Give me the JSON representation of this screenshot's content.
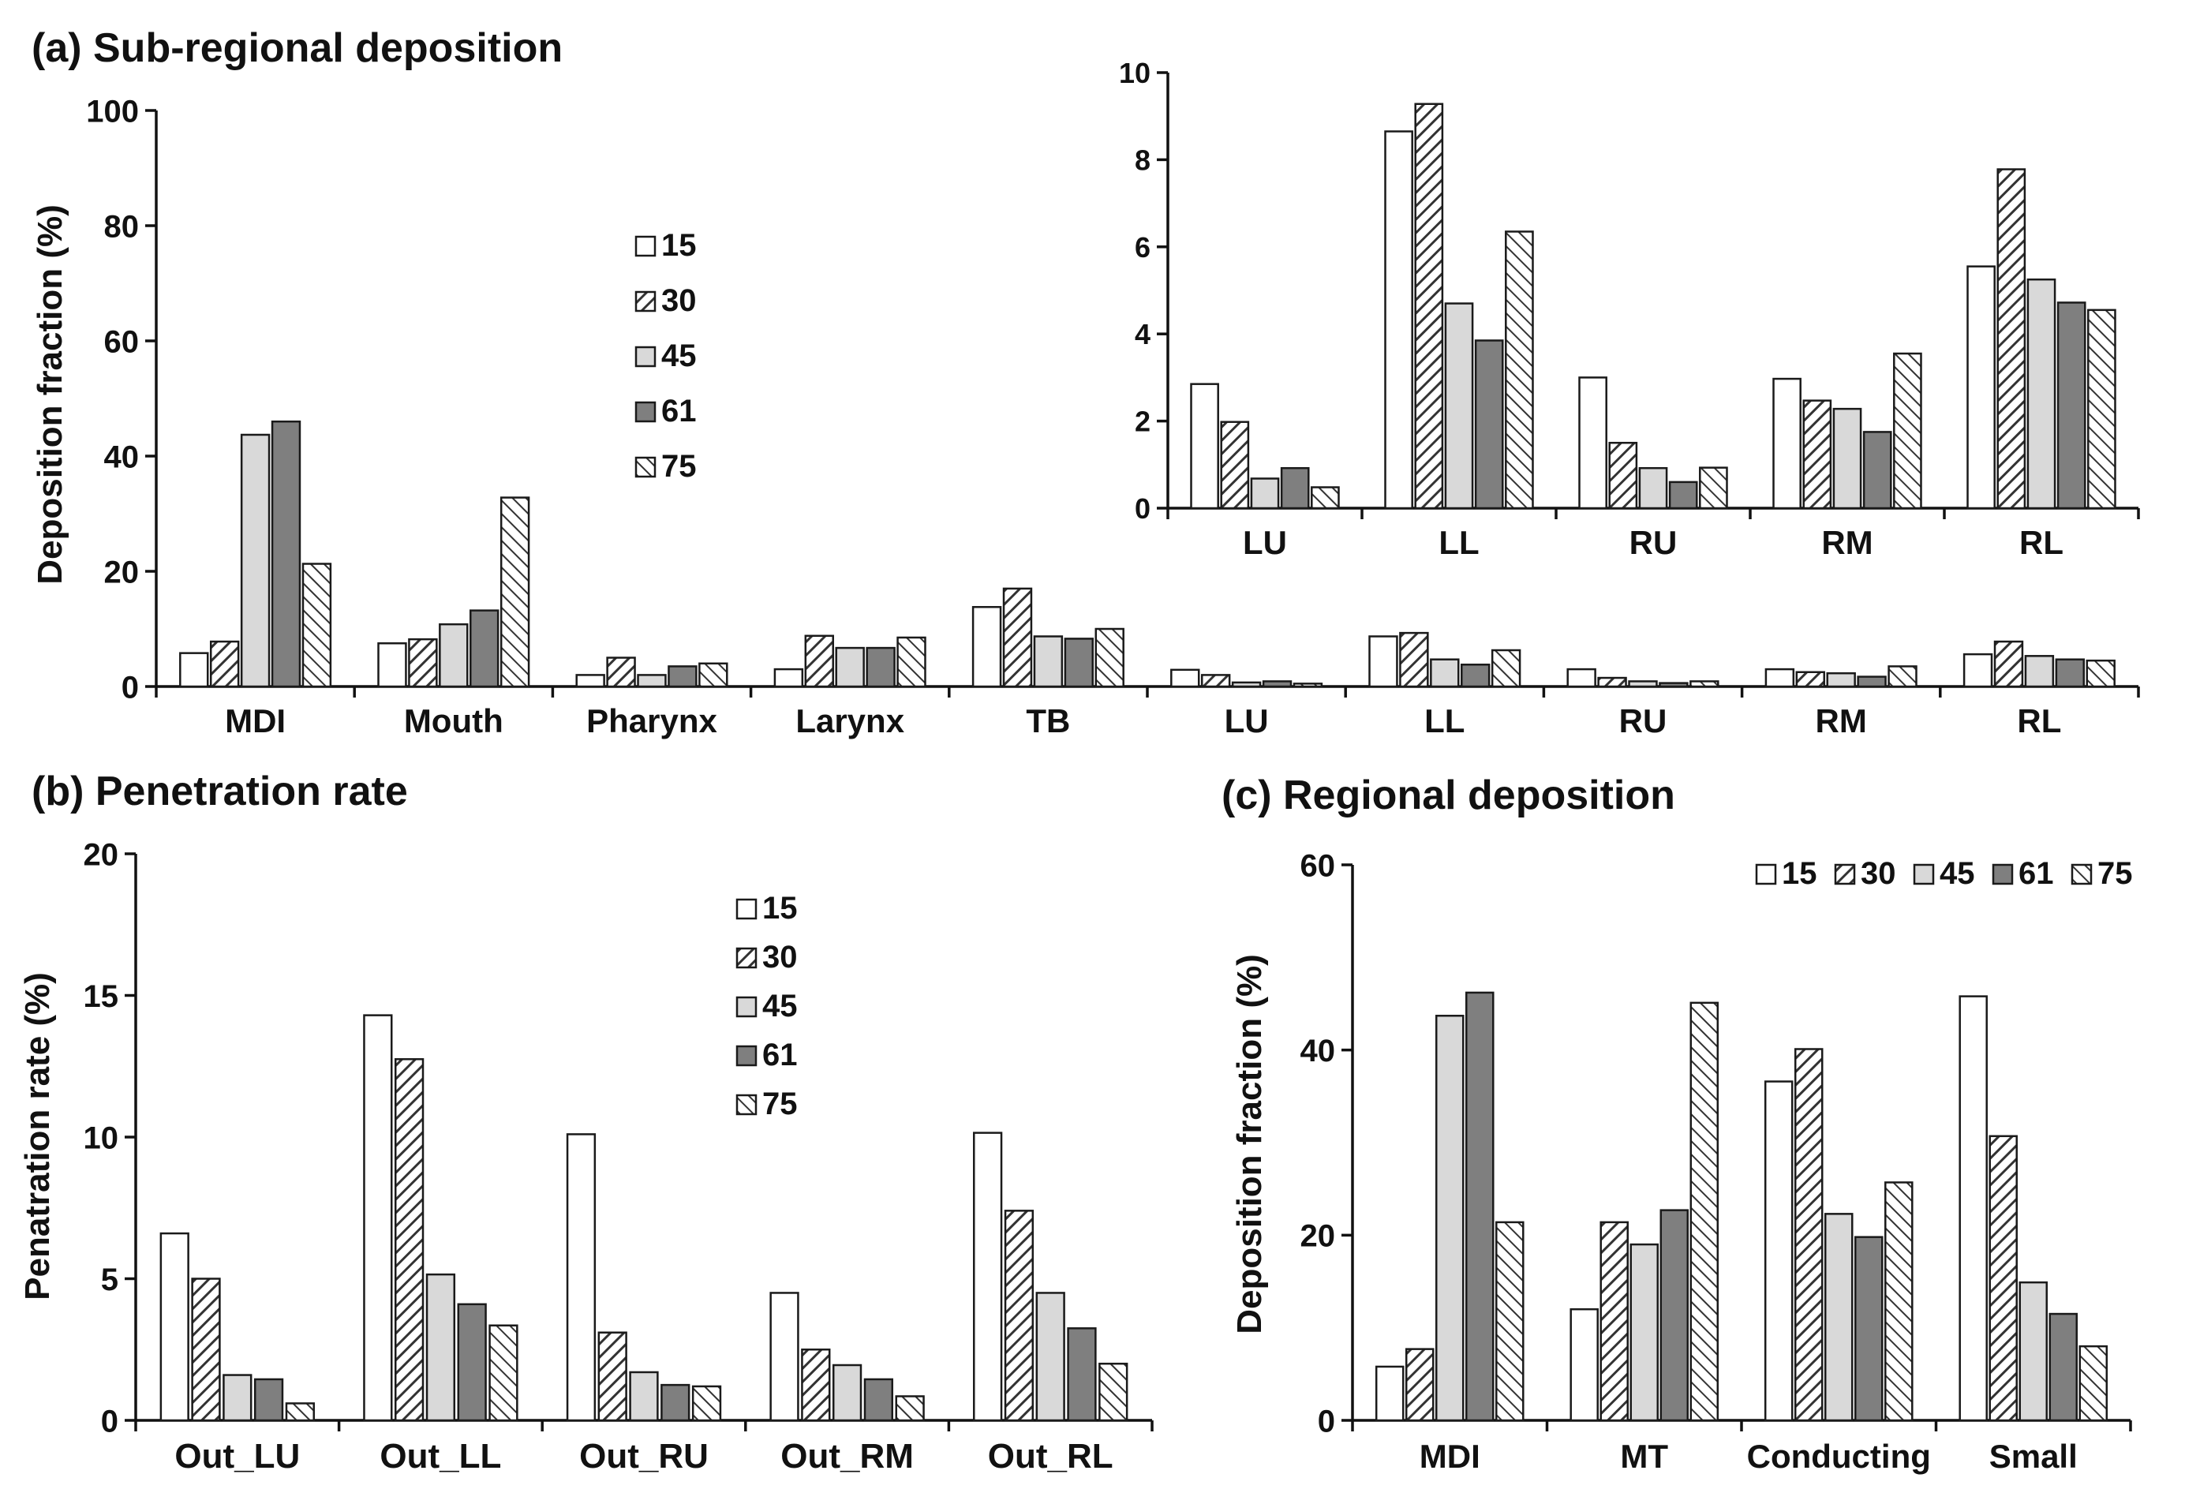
{
  "colors": {
    "s15": "#ffffff",
    "s30": "url(#hatch30)",
    "s45": "#d9d9d9",
    "s61": "#7f7f7f",
    "s75": "url(#hatch75)"
  },
  "chart_data": [
    {
      "id": "a",
      "type": "bar",
      "title": "(a) Sub-regional deposition",
      "xlabel": "",
      "ylabel": "Deposition fraction (%)",
      "ylim": [
        0,
        100
      ],
      "yticks": [
        "0",
        "20",
        "40",
        "60",
        "80",
        "100"
      ],
      "legend_position": "center",
      "categories": [
        "MDI",
        "Mouth",
        "Pharynx",
        "Larynx",
        "TB",
        "LU",
        "LL",
        "RU",
        "RM",
        "RL"
      ],
      "series": [
        {
          "name": "15",
          "values": [
            5.8,
            7.5,
            2.0,
            3.0,
            13.8,
            2.9,
            8.7,
            3.0,
            3.0,
            5.6
          ]
        },
        {
          "name": "30",
          "values": [
            7.8,
            8.2,
            5.0,
            8.8,
            17.0,
            2.0,
            9.3,
            1.5,
            2.5,
            7.8
          ]
        },
        {
          "name": "45",
          "values": [
            43.7,
            10.8,
            2.0,
            6.7,
            8.7,
            0.7,
            4.7,
            0.9,
            2.3,
            5.3
          ]
        },
        {
          "name": "61",
          "values": [
            46.0,
            13.2,
            3.5,
            6.7,
            8.3,
            0.9,
            3.8,
            0.6,
            1.7,
            4.7
          ]
        },
        {
          "name": "75",
          "values": [
            21.3,
            32.8,
            4.0,
            8.5,
            10.0,
            0.5,
            6.3,
            0.9,
            3.5,
            4.5
          ]
        }
      ]
    },
    {
      "id": "a-inset",
      "type": "bar",
      "title": "",
      "xlabel": "",
      "ylabel": "",
      "ylim": [
        0,
        10
      ],
      "yticks": [
        "0",
        "2",
        "4",
        "6",
        "8",
        "10"
      ],
      "categories": [
        "LU",
        "LL",
        "RU",
        "RM",
        "RL"
      ],
      "series": [
        {
          "name": "15",
          "values": [
            2.85,
            8.65,
            3.0,
            2.97,
            5.55
          ]
        },
        {
          "name": "30",
          "values": [
            1.98,
            9.28,
            1.5,
            2.47,
            7.78
          ]
        },
        {
          "name": "45",
          "values": [
            0.68,
            4.7,
            0.92,
            2.28,
            5.25
          ]
        },
        {
          "name": "61",
          "values": [
            0.92,
            3.85,
            0.6,
            1.75,
            4.72
          ]
        },
        {
          "name": "75",
          "values": [
            0.48,
            6.35,
            0.93,
            3.55,
            4.55
          ]
        }
      ]
    },
    {
      "id": "b",
      "type": "bar",
      "title": "(b) Penetration rate",
      "xlabel": "",
      "ylabel": "Penatration rate (%)",
      "ylim": [
        0,
        20
      ],
      "yticks": [
        "0",
        "5",
        "10",
        "15",
        "20"
      ],
      "legend_position": "top-right",
      "categories": [
        "Out_LU",
        "Out_LL",
        "Out_RU",
        "Out_RM",
        "Out_RL"
      ],
      "series": [
        {
          "name": "15",
          "values": [
            6.6,
            14.3,
            10.1,
            4.5,
            10.15
          ]
        },
        {
          "name": "30",
          "values": [
            5.0,
            12.75,
            3.1,
            2.5,
            7.4
          ]
        },
        {
          "name": "45",
          "values": [
            1.6,
            5.15,
            1.7,
            1.95,
            4.5
          ]
        },
        {
          "name": "61",
          "values": [
            1.45,
            4.1,
            1.25,
            1.45,
            3.25
          ]
        },
        {
          "name": "75",
          "values": [
            0.6,
            3.35,
            1.2,
            0.85,
            2.0
          ]
        }
      ]
    },
    {
      "id": "c",
      "type": "bar",
      "title": "(c) Regional deposition",
      "xlabel": "",
      "ylabel": "Deposition fraction (%)",
      "ylim": [
        0,
        60
      ],
      "yticks": [
        "0",
        "20",
        "40",
        "60"
      ],
      "legend_position": "top",
      "categories": [
        "MDI",
        "MT",
        "Conducting",
        "Small"
      ],
      "series": [
        {
          "name": "15",
          "values": [
            5.8,
            12.0,
            36.6,
            45.8
          ]
        },
        {
          "name": "30",
          "values": [
            7.7,
            21.4,
            40.1,
            30.7
          ]
        },
        {
          "name": "45",
          "values": [
            43.7,
            19.0,
            22.3,
            14.9
          ]
        },
        {
          "name": "61",
          "values": [
            46.2,
            22.7,
            19.8,
            11.5
          ]
        },
        {
          "name": "75",
          "values": [
            21.4,
            45.1,
            25.7,
            8.0
          ]
        }
      ]
    }
  ]
}
